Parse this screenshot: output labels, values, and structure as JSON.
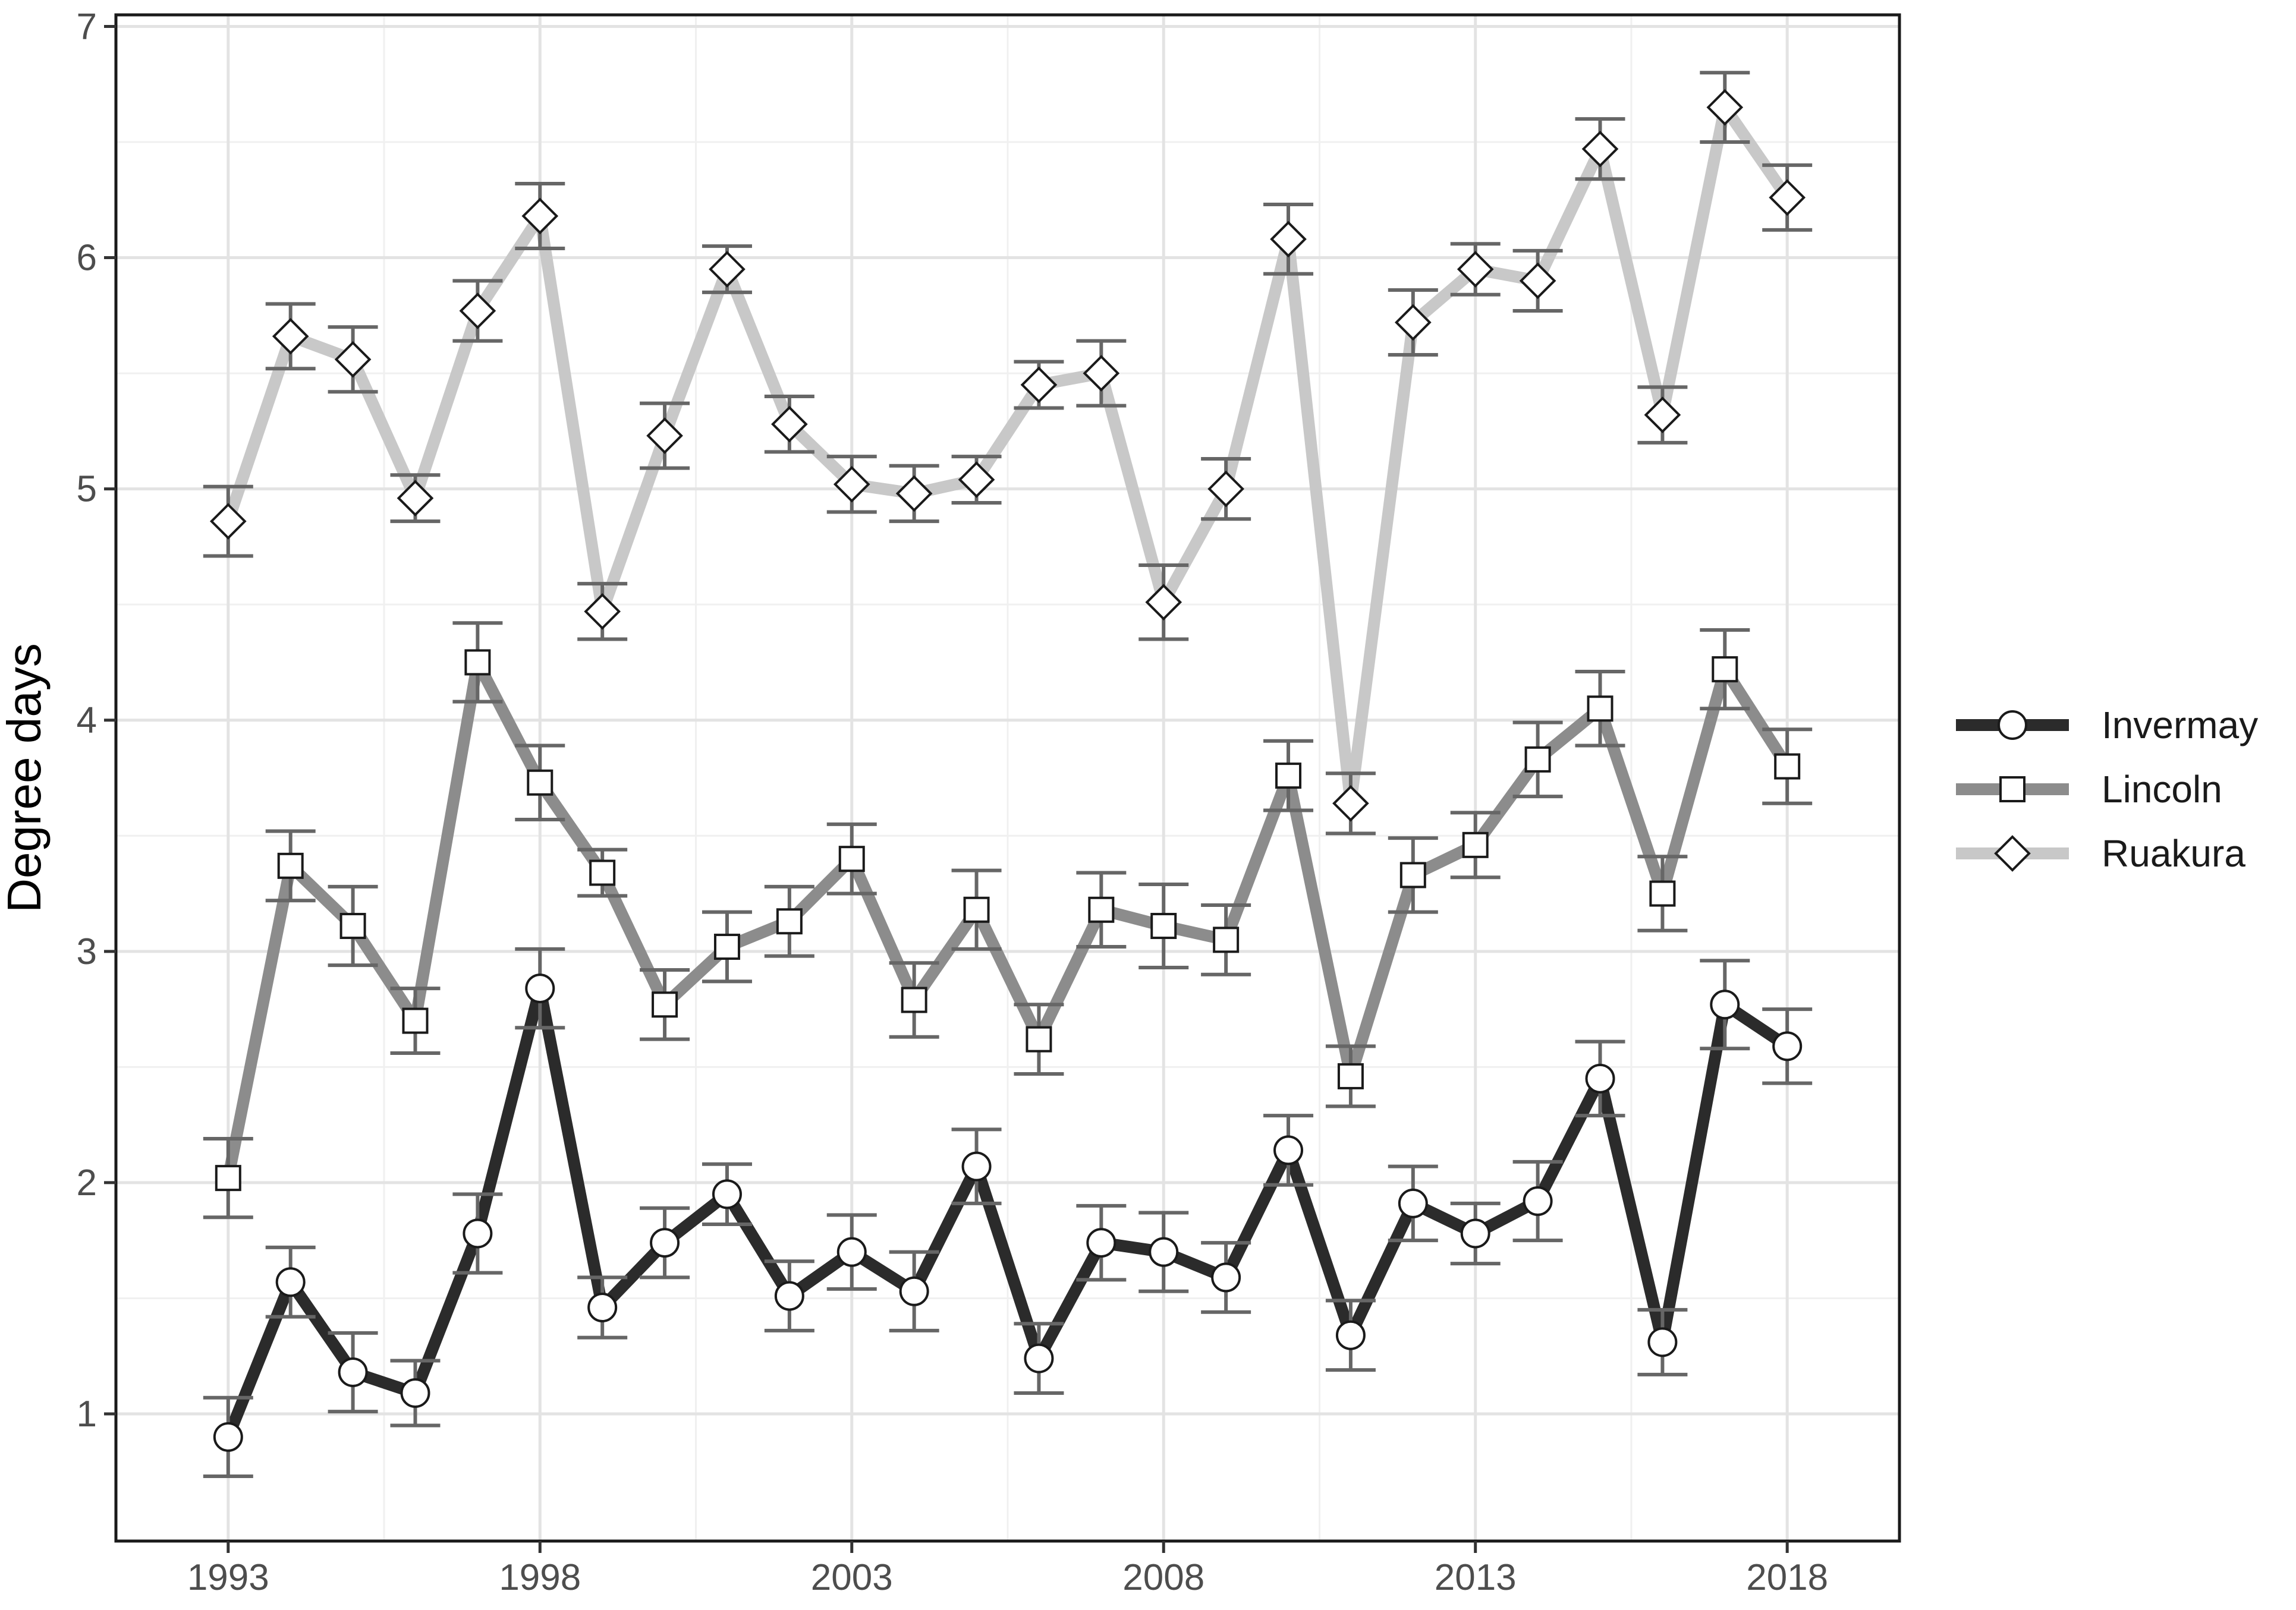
{
  "chart_data": {
    "type": "line",
    "title": "",
    "xlabel": "",
    "ylabel": "Degree days",
    "xlim": [
      1991.2,
      2019.8
    ],
    "ylim": [
      0.45,
      7.05
    ],
    "xticks": [
      "1993",
      "1998",
      "2003",
      "2008",
      "2013",
      "2018"
    ],
    "yticks": [
      "1",
      "2",
      "3",
      "4",
      "5",
      "6",
      "7"
    ],
    "grid": true,
    "legend_position": "right",
    "x": [
      1993,
      1994,
      1995,
      1996,
      1997,
      1998,
      1999,
      2000,
      2001,
      2002,
      2003,
      2004,
      2005,
      2006,
      2007,
      2008,
      2009,
      2010,
      2011,
      2012,
      2013,
      2014,
      2015,
      2016,
      2017,
      2018
    ],
    "series": [
      {
        "name": "Invermay",
        "marker": "circle",
        "color": "#2b2b2b",
        "values": [
          0.9,
          1.57,
          1.18,
          1.09,
          1.78,
          2.84,
          1.46,
          1.74,
          1.95,
          1.51,
          1.7,
          1.53,
          2.07,
          1.24,
          1.74,
          1.7,
          1.59,
          2.14,
          1.34,
          1.91,
          1.78,
          1.92,
          2.45,
          1.31,
          2.77,
          2.59
        ],
        "errors": [
          0.17,
          0.15,
          0.17,
          0.14,
          0.17,
          0.17,
          0.13,
          0.15,
          0.13,
          0.15,
          0.16,
          0.17,
          0.16,
          0.15,
          0.16,
          0.17,
          0.15,
          0.15,
          0.15,
          0.16,
          0.13,
          0.17,
          0.16,
          0.14,
          0.19,
          0.16
        ]
      },
      {
        "name": "Lincoln",
        "marker": "square",
        "color": "#8c8c8c",
        "values": [
          2.02,
          3.37,
          3.11,
          2.7,
          4.25,
          3.73,
          3.34,
          2.77,
          3.02,
          3.13,
          3.4,
          2.79,
          3.18,
          2.62,
          3.18,
          3.11,
          3.05,
          3.76,
          2.46,
          3.33,
          3.46,
          3.83,
          4.05,
          3.25,
          4.22,
          3.8
        ],
        "errors": [
          0.17,
          0.15,
          0.17,
          0.14,
          0.17,
          0.16,
          0.1,
          0.15,
          0.15,
          0.15,
          0.15,
          0.16,
          0.17,
          0.15,
          0.16,
          0.18,
          0.15,
          0.15,
          0.13,
          0.16,
          0.14,
          0.16,
          0.16,
          0.16,
          0.17,
          0.16
        ]
      },
      {
        "name": "Ruakura",
        "marker": "diamond",
        "color": "#c8c8c8",
        "values": [
          4.86,
          5.66,
          5.56,
          4.96,
          5.77,
          6.18,
          4.47,
          5.23,
          5.95,
          5.28,
          5.02,
          4.98,
          5.04,
          5.45,
          5.5,
          4.51,
          5.0,
          6.08,
          3.64,
          5.72,
          5.95,
          5.9,
          6.47,
          5.32,
          6.65,
          6.26
        ],
        "errors": [
          0.15,
          0.14,
          0.14,
          0.1,
          0.13,
          0.14,
          0.12,
          0.14,
          0.1,
          0.12,
          0.12,
          0.12,
          0.1,
          0.1,
          0.14,
          0.16,
          0.13,
          0.15,
          0.13,
          0.14,
          0.11,
          0.13,
          0.13,
          0.12,
          0.15,
          0.14
        ]
      }
    ]
  }
}
